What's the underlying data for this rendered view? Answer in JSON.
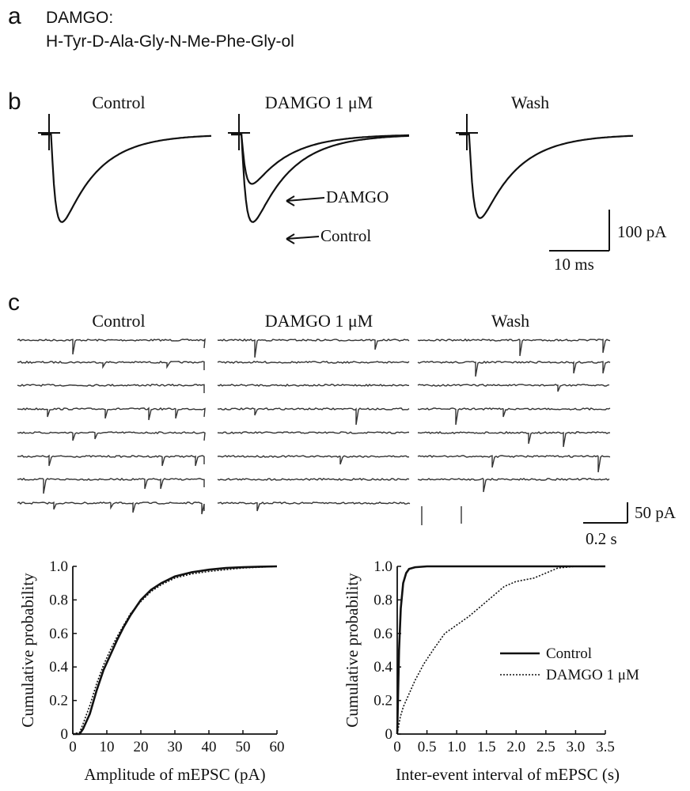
{
  "panel_a": {
    "label": "a",
    "line1": "DAMGO:",
    "line2": "H-Tyr-D-Ala-Gly-N-Me-Phe-Gly-ol"
  },
  "panel_b": {
    "label": "b",
    "titles": [
      "Control",
      "DAMGO 1 μM",
      "Wash"
    ],
    "annotations": [
      "DAMGO",
      "Control"
    ],
    "scale_y": "100 pA",
    "scale_x": "10 ms"
  },
  "panel_c": {
    "label": "c",
    "titles": [
      "Control",
      "DAMGO 1 μM",
      "Wash"
    ],
    "scale_y": "50 pA",
    "scale_x": "0.2 s"
  },
  "chart_data": [
    {
      "type": "line",
      "xlabel": "Amplitude of mEPSC (pA)",
      "ylabel": "Cumulative probability",
      "xlim": [
        0,
        60
      ],
      "ylim": [
        0,
        1.0
      ],
      "xticks": [
        "0",
        "10",
        "20",
        "30",
        "40",
        "50",
        "60"
      ],
      "yticks": [
        "0",
        "0.2",
        "0.4",
        "0.6",
        "0.8",
        "1.0"
      ],
      "series": [
        {
          "style": "solid",
          "x": [
            0,
            2,
            3,
            5,
            7,
            9,
            11,
            13,
            15,
            17,
            20,
            23,
            26,
            30,
            35,
            40,
            45,
            50,
            55,
            60
          ],
          "y": [
            0,
            0,
            0.03,
            0.12,
            0.26,
            0.38,
            0.47,
            0.56,
            0.64,
            0.71,
            0.8,
            0.86,
            0.9,
            0.94,
            0.965,
            0.98,
            0.99,
            0.995,
            0.998,
            1.0
          ]
        },
        {
          "style": "dotted",
          "x": [
            0,
            2,
            3,
            5,
            7,
            9,
            11,
            13,
            15,
            17,
            20,
            23,
            26,
            30,
            35,
            40,
            45,
            50,
            55,
            60
          ],
          "y": [
            0,
            0.01,
            0.06,
            0.17,
            0.3,
            0.41,
            0.5,
            0.58,
            0.65,
            0.72,
            0.79,
            0.85,
            0.89,
            0.93,
            0.955,
            0.97,
            0.98,
            0.99,
            0.995,
            1.0
          ]
        }
      ]
    },
    {
      "type": "line",
      "xlabel": "Inter-event interval of mEPSC (s)",
      "ylabel": "Cumulative probability",
      "xlim": [
        0,
        3.5
      ],
      "ylim": [
        0,
        1.0
      ],
      "xticks": [
        "0",
        "0.5",
        "1.0",
        "1.5",
        "2.0",
        "2.5",
        "3.0",
        "3.5"
      ],
      "yticks": [
        "0",
        "0.2",
        "0.4",
        "0.6",
        "0.8",
        "1.0"
      ],
      "legend": {
        "position": "right",
        "entries": [
          "Control",
          "DAMGO 1 μM"
        ]
      },
      "series": [
        {
          "name": "Control",
          "style": "solid",
          "x": [
            0,
            0.03,
            0.06,
            0.1,
            0.15,
            0.2,
            0.3,
            0.5,
            1.0,
            3.5
          ],
          "y": [
            0,
            0.5,
            0.75,
            0.9,
            0.96,
            0.985,
            0.995,
            1.0,
            1.0,
            1.0
          ]
        },
        {
          "name": "DAMGO 1 μM",
          "style": "dotted",
          "x": [
            0,
            0.05,
            0.1,
            0.2,
            0.3,
            0.45,
            0.6,
            0.8,
            1.0,
            1.2,
            1.4,
            1.6,
            1.8,
            2.0,
            2.3,
            2.5,
            2.7,
            3.0,
            3.5
          ],
          "y": [
            0,
            0.1,
            0.16,
            0.24,
            0.32,
            0.42,
            0.5,
            0.6,
            0.65,
            0.7,
            0.76,
            0.82,
            0.88,
            0.91,
            0.93,
            0.96,
            0.99,
            1.0,
            1.0
          ]
        }
      ]
    }
  ]
}
